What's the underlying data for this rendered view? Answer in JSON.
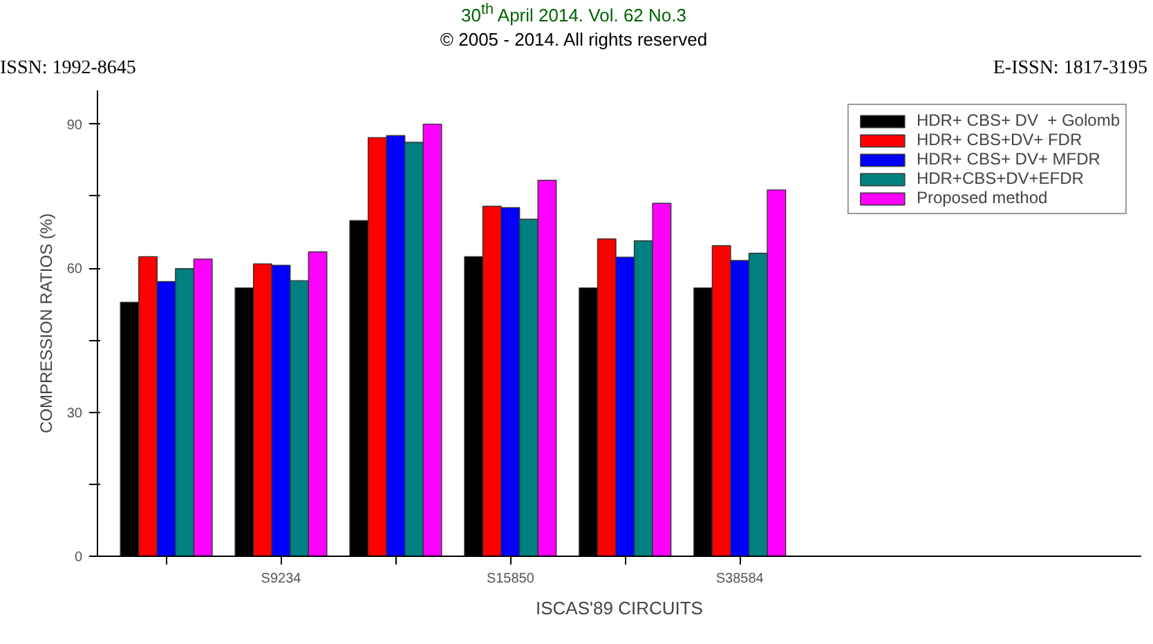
{
  "chart_data": {
    "type": "bar",
    "xlabel": "ISCAS'89 CIRCUITS",
    "ylabel": "COMPRESSION RATIOS (%)",
    "categories": [
      null,
      "S9234",
      null,
      "S15850",
      null,
      "S38584"
    ],
    "series": [
      {
        "name": "HDR+ CBS+ DV  + Golomb",
        "color": "#000000",
        "values": [
          52.9,
          55.9,
          69.9,
          62.4,
          55.9,
          55.9
        ]
      },
      {
        "name": "HDR+ CBS+DV+ FDR",
        "color": "#ff0000",
        "values": [
          62.4,
          60.9,
          87.2,
          72.9,
          66.1,
          64.7
        ]
      },
      {
        "name": "HDR+ CBS+ DV+ MFDR",
        "color": "#0000ff",
        "values": [
          57.2,
          60.6,
          87.6,
          72.6,
          62.3,
          61.6
        ]
      },
      {
        "name": "HDR+CBS+DV+EFDR",
        "color": "#008080",
        "values": [
          59.9,
          57.4,
          86.2,
          70.2,
          65.7,
          63.1
        ]
      },
      {
        "name": "Proposed method",
        "color": "#ff00ff",
        "values": [
          61.9,
          63.4,
          90.0,
          78.3,
          73.5,
          76.3
        ]
      }
    ],
    "ylim": [
      0,
      97
    ],
    "yticks": [
      0,
      {
        "value": 15,
        "label": null
      },
      30,
      {
        "value": 45,
        "label": null
      },
      60,
      {
        "value": 75,
        "label": null
      },
      90
    ],
    "grid": false,
    "legend": "top right",
    "annotations": [
      "30$^{th}$ April 2014. Vol. 62 No.3",
      "© 2005 - 2014. All rights reserved",
      "ISSN: 1992-8645",
      "E-ISSN: 1817-3195"
    ]
  }
}
